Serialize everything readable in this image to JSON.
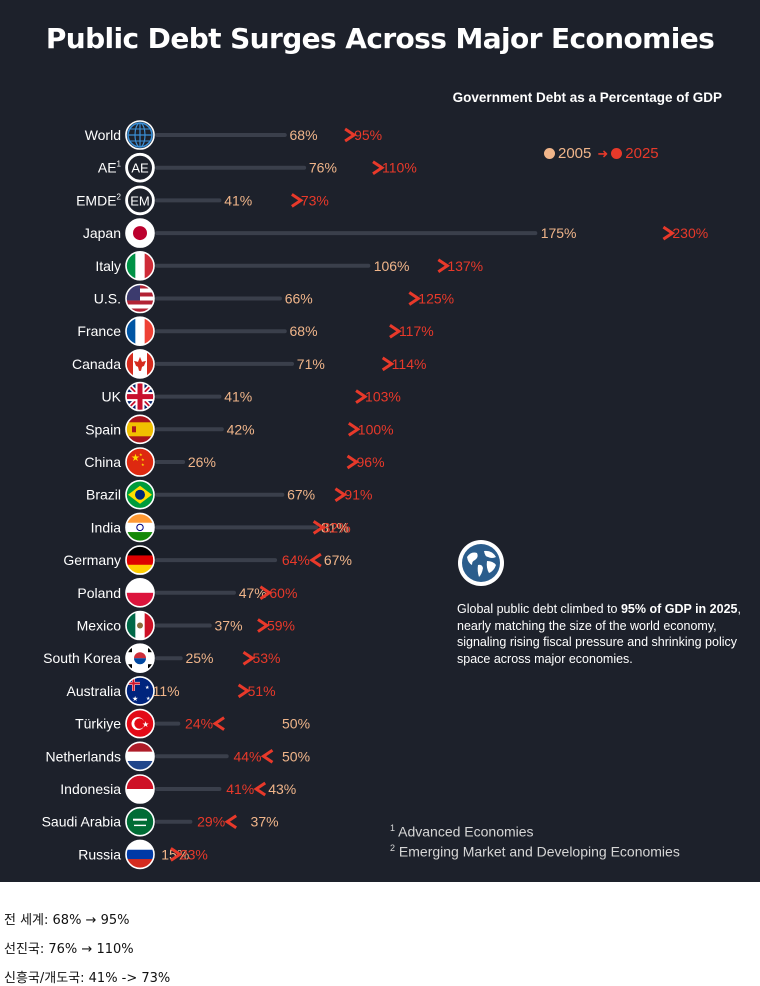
{
  "infographic": {
    "title": "Public Debt Surges Across Major Economies",
    "subtitle": "Government Debt as a Percentage of GDP",
    "legend": {
      "label_2005": "2005",
      "label_2025": "2025"
    },
    "note": {
      "icon": "globe-icon",
      "text_pre": "Global public debt climbed to ",
      "text_bold": "95% of GDP in 2025",
      "text_post": ", nearly matching the size of the world economy, signaling rising fiscal pressure and shrinking policy space across major economies."
    },
    "footnotes": [
      {
        "mark": "1",
        "text": "Advanced Economies"
      },
      {
        "mark": "2",
        "text": "Emerging Market and Developing Economies"
      }
    ]
  },
  "chart_data": {
    "type": "dumbbell",
    "title": "Public Debt Surges Across Major Economies",
    "subtitle": "Government Debt as a Percentage of GDP",
    "unit": "% of GDP",
    "series": [
      {
        "name": "2005",
        "color": "#f0b58a"
      },
      {
        "name": "2025",
        "color": "#e8392a"
      }
    ],
    "rows": [
      {
        "label": "World",
        "sup": "",
        "icon": "globe",
        "v2005": 68,
        "v2025": 95
      },
      {
        "label": "AE",
        "sup": "1",
        "icon": "AE",
        "v2005": 76,
        "v2025": 110
      },
      {
        "label": "EMDE",
        "sup": "2",
        "icon": "EM",
        "v2005": 41,
        "v2025": 73
      },
      {
        "label": "Japan",
        "sup": "",
        "icon": "japan",
        "v2005": 175,
        "v2025": 230
      },
      {
        "label": "Italy",
        "sup": "",
        "icon": "italy",
        "v2005": 106,
        "v2025": 137
      },
      {
        "label": "U.S.",
        "sup": "",
        "icon": "us",
        "v2005": 66,
        "v2025": 125
      },
      {
        "label": "France",
        "sup": "",
        "icon": "france",
        "v2005": 68,
        "v2025": 117
      },
      {
        "label": "Canada",
        "sup": "",
        "icon": "canada",
        "v2005": 71,
        "v2025": 114
      },
      {
        "label": "UK",
        "sup": "",
        "icon": "uk",
        "v2005": 41,
        "v2025": 103
      },
      {
        "label": "Spain",
        "sup": "",
        "icon": "spain",
        "v2005": 42,
        "v2025": 100
      },
      {
        "label": "China",
        "sup": "",
        "icon": "china",
        "v2005": 26,
        "v2025": 96
      },
      {
        "label": "Brazil",
        "sup": "",
        "icon": "brazil",
        "v2005": 67,
        "v2025": 91
      },
      {
        "label": "India",
        "sup": "",
        "icon": "india",
        "v2005": 81,
        "v2025": 82
      },
      {
        "label": "Germany",
        "sup": "",
        "icon": "germany",
        "v2005": 67,
        "v2025": 64
      },
      {
        "label": "Poland",
        "sup": "",
        "icon": "poland",
        "v2005": 47,
        "v2025": 60
      },
      {
        "label": "Mexico",
        "sup": "",
        "icon": "mexico",
        "v2005": 37,
        "v2025": 59
      },
      {
        "label": "South Korea",
        "sup": "",
        "icon": "korea",
        "v2005": 25,
        "v2025": 53
      },
      {
        "label": "Australia",
        "sup": "",
        "icon": "australia",
        "v2005": 11,
        "v2025": 51
      },
      {
        "label": "Türkiye",
        "sup": "",
        "icon": "turkiye",
        "v2005": 50,
        "v2025": 24
      },
      {
        "label": "Netherlands",
        "sup": "",
        "icon": "netherlands",
        "v2005": 50,
        "v2025": 44
      },
      {
        "label": "Indonesia",
        "sup": "",
        "icon": "indonesia",
        "v2005": 43,
        "v2025": 41
      },
      {
        "label": "Saudi Arabia",
        "sup": "",
        "icon": "saudi",
        "v2005": 37,
        "v2025": 29
      },
      {
        "label": "Russia",
        "sup": "",
        "icon": "russia",
        "v2005": 15,
        "v2025": 23
      }
    ]
  },
  "captions": [
    "전 세계: 68% → 95%",
    "선진국: 76% → 110%",
    "신흥국/개도국: 41% -> 73%"
  ]
}
